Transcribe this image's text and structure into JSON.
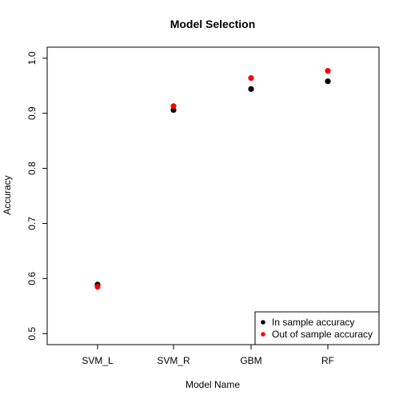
{
  "chart_data": {
    "type": "scatter",
    "title": "Model Selection",
    "xlabel": "Model Name",
    "ylabel": "Accuracy",
    "categories": [
      "SVM_L",
      "SVM_R",
      "GBM",
      "RF"
    ],
    "ylim": [
      0.48,
      1.02
    ],
    "yticks": [
      0.5,
      0.6,
      0.7,
      0.8,
      0.9,
      1.0
    ],
    "ytick_labels": [
      "0.5",
      "0.6",
      "0.7",
      "0.8",
      "0.9",
      "1.0"
    ],
    "grid": false,
    "legend_position": "bottom-right",
    "series": [
      {
        "name": "In sample accuracy",
        "color": "#000000",
        "values": [
          0.589,
          0.906,
          0.944,
          0.958
        ]
      },
      {
        "name": "Out of sample accuracy",
        "color": "#ff0000",
        "values": [
          0.585,
          0.913,
          0.964,
          0.977
        ]
      }
    ]
  }
}
